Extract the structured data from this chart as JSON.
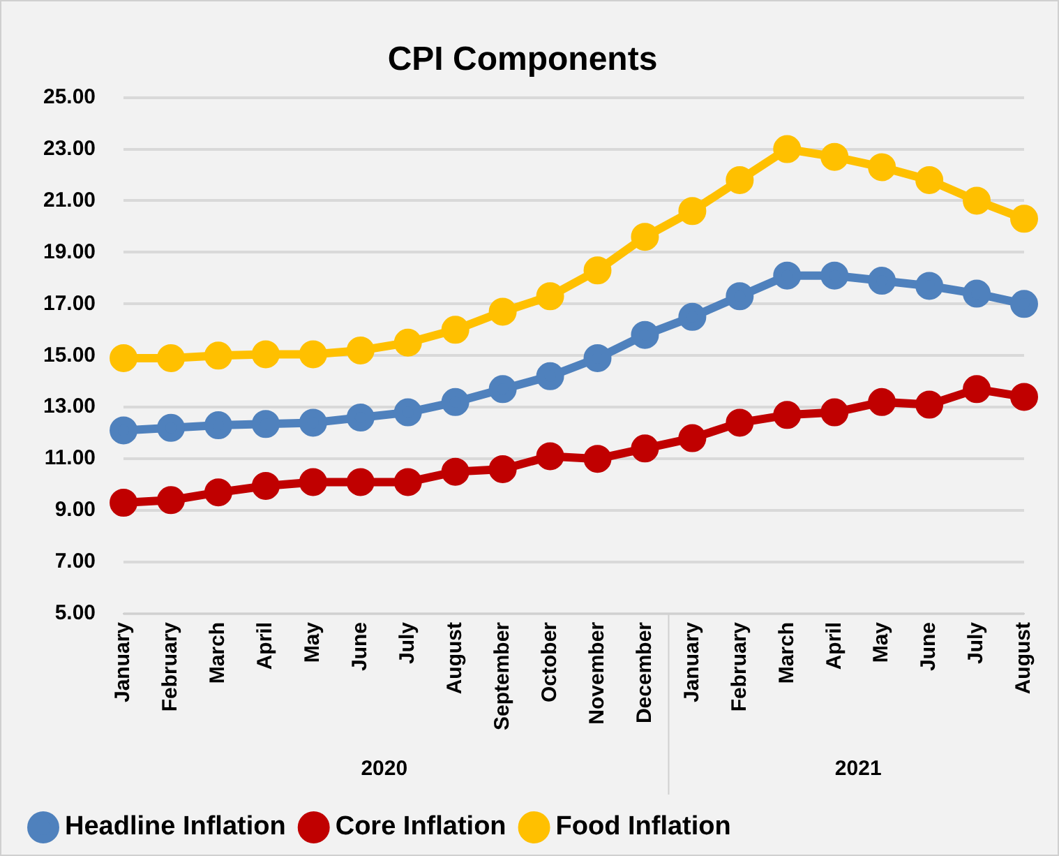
{
  "chart_data": {
    "type": "line",
    "title": "CPI Components",
    "categories": [
      "January",
      "February",
      "March",
      "April",
      "May",
      "June",
      "July",
      "August",
      "September",
      "October",
      "November",
      "December",
      "January",
      "February",
      "March",
      "April",
      "May",
      "June",
      "July",
      "August"
    ],
    "series": [
      {
        "name": "Headline Inflation",
        "color": "#4f81bd",
        "values": [
          12.1,
          12.2,
          12.3,
          12.35,
          12.4,
          12.6,
          12.8,
          13.2,
          13.7,
          14.2,
          14.9,
          15.8,
          16.5,
          17.3,
          18.1,
          18.1,
          17.9,
          17.7,
          17.4,
          17.0
        ]
      },
      {
        "name": "Core Inflation",
        "color": "#c00000",
        "values": [
          9.3,
          9.4,
          9.7,
          9.95,
          10.1,
          10.1,
          10.1,
          10.5,
          10.6,
          11.1,
          11.0,
          11.4,
          11.8,
          12.4,
          12.7,
          12.8,
          13.2,
          13.1,
          13.7,
          13.4
        ]
      },
      {
        "name": "Food Inflation",
        "color": "#ffc000",
        "values": [
          14.9,
          14.9,
          15.0,
          15.05,
          15.05,
          15.2,
          15.5,
          16.0,
          16.7,
          17.3,
          18.3,
          19.6,
          20.6,
          21.8,
          23.0,
          22.7,
          22.3,
          21.8,
          21.0,
          20.3
        ]
      }
    ],
    "annotations": [
      "2020",
      "2021"
    ],
    "ylim": [
      5,
      25
    ],
    "yticks": [
      {
        "value": 5,
        "label": "5.00"
      },
      {
        "value": 7,
        "label": "7.00"
      },
      {
        "value": 9,
        "label": "9.00"
      },
      {
        "value": 11,
        "label": "11.00"
      },
      {
        "value": 13,
        "label": "13.00"
      },
      {
        "value": 15,
        "label": "15.00"
      },
      {
        "value": 17,
        "label": "17.00"
      },
      {
        "value": 19,
        "label": "19.00"
      },
      {
        "value": 21,
        "label": "21.00"
      },
      {
        "value": 23,
        "label": "23.00"
      },
      {
        "value": 25,
        "label": "25.00"
      }
    ],
    "grid": "y",
    "legend": "bottom",
    "marker": "circle",
    "line_style": "solid"
  }
}
